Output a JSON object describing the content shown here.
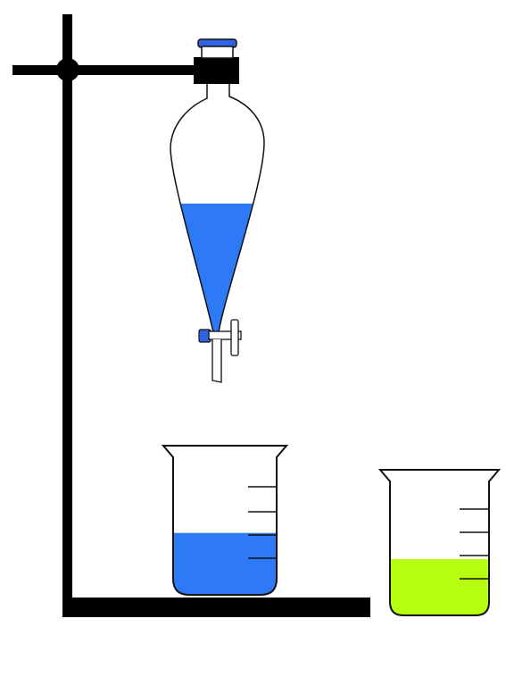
{
  "colors": {
    "background": "#ffffff",
    "stand": "#000000",
    "outline": "#111111",
    "funnel_liquid": "#2e79f5",
    "beaker1_liquid": "#2e79f5",
    "beaker2_liquid": "#b5ff0f",
    "stopper": "#2e64e0",
    "stopcock_knob": "#2e64e0"
  },
  "icons": {
    "stand": "ring-stand-icon",
    "clamp": "clamp-icon",
    "funnel": "separatory-funnel-icon",
    "beaker": "beaker-icon"
  },
  "levels": {
    "funnel_fill_fraction": 0.55,
    "beaker1_fill_fraction": 0.45,
    "beaker2_fill_fraction": 0.42
  }
}
